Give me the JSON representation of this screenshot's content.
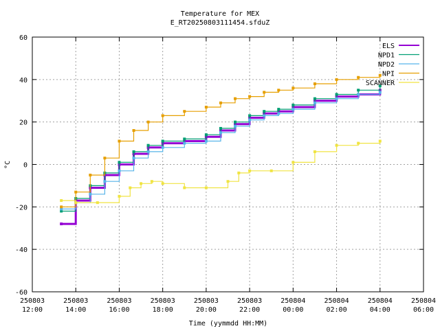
{
  "chart_data": {
    "type": "line",
    "title": "Temperature for MEX",
    "subtitle": "E_RT20250803111454.sfduZ",
    "xlabel": "Time (yymmdd HH:MM)",
    "ylabel": "°C",
    "xlim_hours": [
      12,
      30
    ],
    "ylim": [
      -60,
      60
    ],
    "x_ticks": [
      {
        "date": "250803",
        "time": "12:00"
      },
      {
        "date": "250803",
        "time": "14:00"
      },
      {
        "date": "250803",
        "time": "16:00"
      },
      {
        "date": "250803",
        "time": "18:00"
      },
      {
        "date": "250803",
        "time": "20:00"
      },
      {
        "date": "250803",
        "time": "22:00"
      },
      {
        "date": "250804",
        "time": "00:00"
      },
      {
        "date": "250804",
        "time": "02:00"
      },
      {
        "date": "250804",
        "time": "04:00"
      },
      {
        "date": "250804",
        "time": "06:00"
      }
    ],
    "y_ticks": [
      "-60",
      "-40",
      "-20",
      "0",
      "20",
      "40",
      "60"
    ],
    "grid": true,
    "legend_position": "top-right",
    "series": [
      {
        "name": "ELS",
        "color": "#9400d3",
        "x": [
          "250803 13:20",
          "250803 14:00",
          "250803 14:40",
          "250803 15:20",
          "250803 16:00",
          "250803 16:40",
          "250803 17:20",
          "250803 18:00",
          "250803 19:00",
          "250803 20:00",
          "250803 20:40",
          "250803 21:20",
          "250803 22:00",
          "250803 22:40",
          "250803 23:20",
          "250804 00:00",
          "250804 01:00",
          "250804 02:00",
          "250804 03:00",
          "250804 04:00"
        ],
        "y": [
          -28,
          -17,
          -11,
          -5,
          0,
          5,
          8,
          10,
          11,
          13,
          16,
          19,
          22,
          24,
          25,
          27,
          30,
          32,
          33,
          35
        ]
      },
      {
        "name": "NPD1",
        "color": "#009e73",
        "x": [
          "250803 13:20",
          "250803 14:00",
          "250803 14:40",
          "250803 15:20",
          "250803 16:00",
          "250803 16:40",
          "250803 17:20",
          "250803 18:00",
          "250803 19:00",
          "250803 20:00",
          "250803 20:40",
          "250803 21:20",
          "250803 22:00",
          "250803 22:40",
          "250803 23:20",
          "250804 00:00",
          "250804 01:00",
          "250804 02:00",
          "250804 03:00",
          "250804 04:00"
        ],
        "y": [
          -22,
          -16,
          -10,
          -4,
          1,
          6,
          9,
          11,
          12,
          14,
          17,
          20,
          23,
          25,
          26,
          28,
          31,
          33,
          35,
          37
        ]
      },
      {
        "name": "NPD2",
        "color": "#56b4e9",
        "x": [
          "250803 13:20",
          "250803 14:00",
          "250803 14:40",
          "250803 15:20",
          "250803 16:00",
          "250803 16:40",
          "250803 17:20",
          "250803 18:00",
          "250803 19:00",
          "250803 20:00",
          "250803 20:40",
          "250803 21:20",
          "250803 22:00",
          "250803 22:40",
          "250803 23:20",
          "250804 00:00",
          "250804 01:00",
          "250804 02:00",
          "250804 03:00",
          "250804 04:00"
        ],
        "y": [
          -21,
          -18,
          -14,
          -8,
          -3,
          3,
          6,
          8,
          10,
          11,
          15,
          18,
          21,
          23,
          24,
          26,
          29,
          31,
          33,
          34
        ]
      },
      {
        "name": "NPI",
        "color": "#e69f00",
        "x": [
          "250803 13:20",
          "250803 14:00",
          "250803 14:40",
          "250803 15:20",
          "250803 16:00",
          "250803 16:40",
          "250803 17:20",
          "250803 18:00",
          "250803 19:00",
          "250803 20:00",
          "250803 20:40",
          "250803 21:20",
          "250803 22:00",
          "250803 22:40",
          "250803 23:20",
          "250804 00:00",
          "250804 01:00",
          "250804 02:00",
          "250804 03:00",
          "250804 04:00"
        ],
        "y": [
          -20,
          -13,
          -5,
          3,
          11,
          16,
          20,
          23,
          25,
          27,
          29,
          31,
          32,
          34,
          35,
          36,
          38,
          40,
          41,
          42
        ]
      },
      {
        "name": "SCANNER",
        "color": "#f0e442",
        "x": [
          "250803 13:20",
          "250803 14:00",
          "250803 15:00",
          "250803 16:00",
          "250803 16:30",
          "250803 17:00",
          "250803 17:30",
          "250803 18:00",
          "250803 19:00",
          "250803 20:00",
          "250803 21:00",
          "250803 21:30",
          "250803 22:00",
          "250803 23:00",
          "250804 00:00",
          "250804 01:00",
          "250804 02:00",
          "250804 03:00",
          "250804 04:00"
        ],
        "y": [
          -17,
          -18,
          -18,
          -15,
          -11,
          -9,
          -8,
          -9,
          -11,
          -11,
          -8,
          -4,
          -3,
          -3,
          1,
          6,
          9,
          10,
          11
        ]
      }
    ]
  }
}
